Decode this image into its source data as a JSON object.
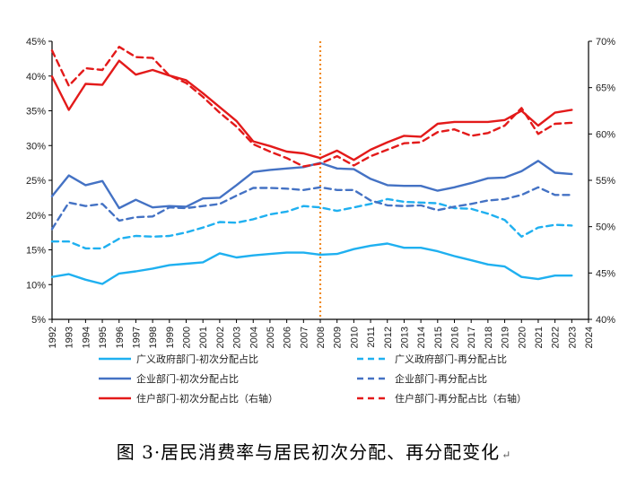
{
  "caption": {
    "text": "图 3·居民消费率与居民初次分配、再分配变化",
    "mark": "↵"
  },
  "chart_data": {
    "type": "line",
    "title": "",
    "x": [
      1992,
      1993,
      1994,
      1995,
      1996,
      1997,
      1998,
      1999,
      2000,
      2001,
      2002,
      2003,
      2004,
      2005,
      2006,
      2007,
      2008,
      2009,
      2010,
      2011,
      2012,
      2013,
      2014,
      2015,
      2016,
      2017,
      2018,
      2019,
      2020,
      2021,
      2022,
      2023
    ],
    "x_ticks": [
      "1992",
      "1993",
      "1994",
      "1995",
      "1996",
      "1997",
      "1998",
      "1999",
      "2000",
      "2001",
      "2002",
      "2003",
      "2004",
      "2005",
      "2006",
      "2007",
      "2008",
      "2009",
      "2010",
      "2011",
      "2012",
      "2013",
      "2014",
      "2015",
      "2016",
      "2017",
      "2018",
      "2019",
      "2020",
      "2021",
      "2022",
      "2023",
      "2024"
    ],
    "xlim": [
      1992,
      2024
    ],
    "ylim_left": [
      5,
      45
    ],
    "left_ticks": [
      "5%",
      "10%",
      "15%",
      "20%",
      "25%",
      "30%",
      "35%",
      "40%",
      "45%"
    ],
    "ylim_right": [
      40,
      70
    ],
    "right_ticks": [
      "40%",
      "45%",
      "50%",
      "55%",
      "60%",
      "65%",
      "70%"
    ],
    "reference_line_x": 2008,
    "colors": {
      "gov": "#1fb0f0",
      "ent": "#4472c4",
      "hh": "#e31a1a",
      "ref": "#f08a24"
    },
    "series": [
      {
        "name": "广义政府部门-初次分配占比",
        "axis": "left",
        "style": "solid",
        "color_key": "gov",
        "values": [
          11.1,
          11.5,
          10.7,
          10.1,
          11.6,
          11.9,
          12.3,
          12.8,
          13.0,
          13.2,
          14.5,
          13.9,
          14.2,
          14.4,
          14.6,
          14.6,
          14.3,
          14.4,
          15.1,
          15.6,
          15.9,
          15.3,
          15.3,
          14.8,
          14.1,
          13.5,
          12.9,
          12.6,
          11.1,
          10.8,
          11.3,
          11.3
        ]
      },
      {
        "name": "广义政府部门-再分配占比",
        "axis": "left",
        "style": "dash",
        "color_key": "gov",
        "values": [
          16.2,
          16.2,
          15.2,
          15.2,
          16.6,
          17.0,
          16.9,
          17.0,
          17.5,
          18.2,
          19.0,
          18.9,
          19.4,
          20.1,
          20.5,
          21.3,
          21.1,
          20.6,
          21.1,
          21.6,
          22.3,
          21.9,
          21.8,
          21.7,
          21.0,
          20.9,
          20.2,
          19.3,
          16.9,
          18.2,
          18.6,
          18.5
        ]
      },
      {
        "name": "企业部门-初次分配占比",
        "axis": "left",
        "style": "solid",
        "color_key": "ent",
        "values": [
          22.7,
          25.7,
          24.3,
          24.9,
          21.0,
          22.2,
          21.1,
          21.3,
          21.2,
          22.4,
          22.5,
          24.3,
          26.2,
          26.5,
          26.7,
          26.9,
          27.5,
          26.7,
          26.6,
          25.2,
          24.3,
          24.2,
          24.2,
          23.5,
          24.0,
          24.6,
          25.3,
          25.4,
          26.3,
          27.8,
          26.1,
          25.9
        ]
      },
      {
        "name": "企业部门-再分配占比",
        "axis": "left",
        "style": "dash",
        "color_key": "ent",
        "values": [
          18.0,
          21.8,
          21.3,
          21.6,
          19.2,
          19.7,
          19.8,
          21.1,
          21.0,
          21.3,
          21.6,
          22.8,
          23.9,
          23.9,
          23.8,
          23.6,
          24.0,
          23.6,
          23.6,
          22.1,
          21.4,
          21.3,
          21.4,
          20.7,
          21.2,
          21.6,
          22.1,
          22.3,
          22.9,
          24.0,
          22.9,
          22.9
        ]
      },
      {
        "name": "住户部门-初次分配占比（右轴）",
        "axis": "right",
        "style": "solid",
        "color_key": "hh",
        "values": [
          66.2,
          62.6,
          65.4,
          65.3,
          67.9,
          66.4,
          66.9,
          66.3,
          65.8,
          64.4,
          62.9,
          61.4,
          59.2,
          58.7,
          58.1,
          57.9,
          57.4,
          58.2,
          57.2,
          58.3,
          59.1,
          59.8,
          59.7,
          61.1,
          61.3,
          61.3,
          61.3,
          61.5,
          62.5,
          60.9,
          62.3,
          62.6
        ]
      },
      {
        "name": "住户部门-再分配占比（右轴）",
        "axis": "right",
        "style": "dash",
        "color_key": "hh",
        "values": [
          69.0,
          65.2,
          67.1,
          66.9,
          69.4,
          68.3,
          68.2,
          66.3,
          65.5,
          64.0,
          62.3,
          60.8,
          58.9,
          58.1,
          57.4,
          56.5,
          56.8,
          57.6,
          56.6,
          57.6,
          58.3,
          59.0,
          59.1,
          60.2,
          60.5,
          59.8,
          60.1,
          60.9,
          62.8,
          60.0,
          61.1,
          61.2
        ]
      }
    ],
    "legend_position": "bottom"
  }
}
